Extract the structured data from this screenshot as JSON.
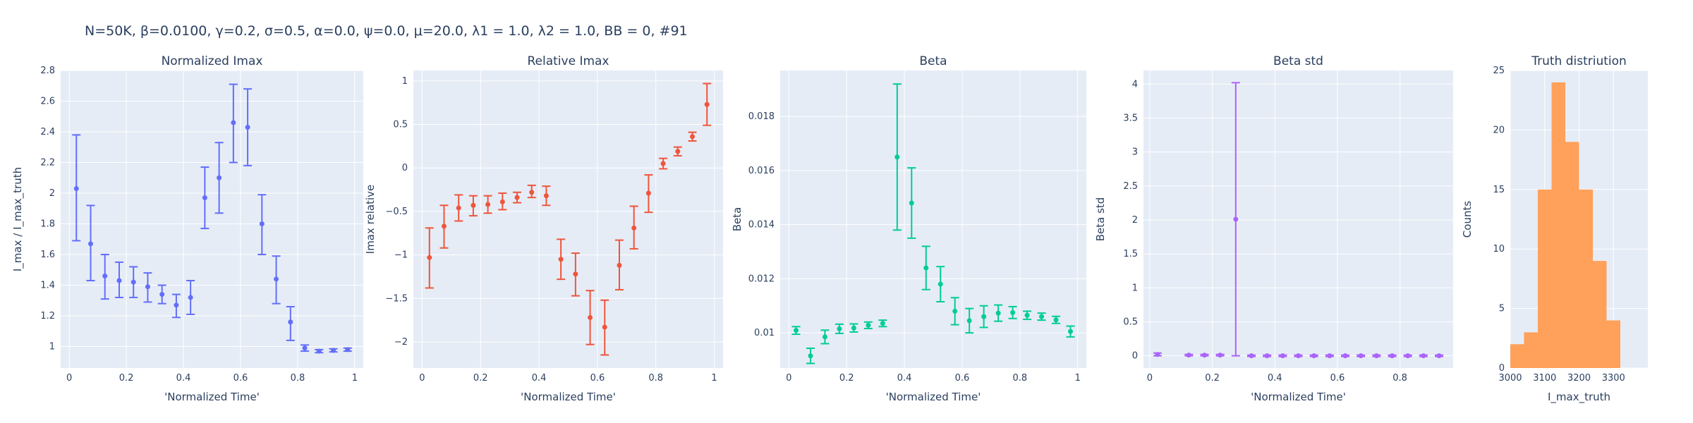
{
  "figure_title": "N=50K, β=0.0100, γ=0.2, σ=0.5,  α=0.0, ψ=0.0, μ=20.0, λ1 = 1.0, λ2 = 1.0, BB = 0, #91",
  "colors": {
    "panel_bg": "#e5ecf6",
    "grid": "#ffffff",
    "text": "#2a3f5f"
  },
  "chart_data": [
    {
      "type": "scatter",
      "title": "Normalized Imax",
      "xlabel": "'Normalized Time'",
      "ylabel": "I_max / I_max_truth",
      "color": "#636efa",
      "xlim": [
        -0.03,
        1.03
      ],
      "ylim": [
        0.86,
        2.8
      ],
      "xticks": [
        0,
        0.2,
        0.4,
        0.6,
        0.8,
        1
      ],
      "xticklabels": [
        "0",
        "0.2",
        "0.4",
        "0.6",
        "0.8",
        "1"
      ],
      "yticks": [
        1,
        1.2,
        1.4,
        1.6,
        1.8,
        2,
        2.2,
        2.4,
        2.6,
        2.8
      ],
      "yticklabels": [
        "1",
        "1.2",
        "1.4",
        "1.6",
        "1.8",
        "2",
        "2.2",
        "2.4",
        "2.6",
        "2.8"
      ],
      "points": [
        {
          "x": 0.025,
          "y": 2.03,
          "lo": 1.69,
          "hi": 2.38
        },
        {
          "x": 0.075,
          "y": 1.67,
          "lo": 1.43,
          "hi": 1.92
        },
        {
          "x": 0.125,
          "y": 1.46,
          "lo": 1.31,
          "hi": 1.6
        },
        {
          "x": 0.175,
          "y": 1.43,
          "lo": 1.32,
          "hi": 1.55
        },
        {
          "x": 0.225,
          "y": 1.42,
          "lo": 1.32,
          "hi": 1.52
        },
        {
          "x": 0.275,
          "y": 1.39,
          "lo": 1.29,
          "hi": 1.48
        },
        {
          "x": 0.325,
          "y": 1.34,
          "lo": 1.28,
          "hi": 1.4
        },
        {
          "x": 0.375,
          "y": 1.27,
          "lo": 1.19,
          "hi": 1.34
        },
        {
          "x": 0.425,
          "y": 1.32,
          "lo": 1.21,
          "hi": 1.43
        },
        {
          "x": 0.475,
          "y": 1.97,
          "lo": 1.77,
          "hi": 2.17
        },
        {
          "x": 0.525,
          "y": 2.1,
          "lo": 1.87,
          "hi": 2.33
        },
        {
          "x": 0.575,
          "y": 2.46,
          "lo": 2.2,
          "hi": 2.71
        },
        {
          "x": 0.625,
          "y": 2.43,
          "lo": 2.18,
          "hi": 2.68
        },
        {
          "x": 0.675,
          "y": 1.8,
          "lo": 1.6,
          "hi": 1.99
        },
        {
          "x": 0.725,
          "y": 1.44,
          "lo": 1.28,
          "hi": 1.59
        },
        {
          "x": 0.775,
          "y": 1.16,
          "lo": 1.04,
          "hi": 1.26
        },
        {
          "x": 0.825,
          "y": 0.99,
          "lo": 0.97,
          "hi": 1.01
        },
        {
          "x": 0.875,
          "y": 0.97,
          "lo": 0.96,
          "hi": 0.98
        },
        {
          "x": 0.925,
          "y": 0.975,
          "lo": 0.965,
          "hi": 0.985
        },
        {
          "x": 0.975,
          "y": 0.98,
          "lo": 0.97,
          "hi": 0.99
        }
      ]
    },
    {
      "type": "scatter",
      "title": "Relative Imax",
      "xlabel": "'Normalized Time'",
      "ylabel": "Imax relative",
      "color": "#ef553b",
      "xlim": [
        -0.03,
        1.03
      ],
      "ylim": [
        -2.3,
        1.12
      ],
      "xticks": [
        0,
        0.2,
        0.4,
        0.6,
        0.8,
        1
      ],
      "xticklabels": [
        "0",
        "0.2",
        "0.4",
        "0.6",
        "0.8",
        "1"
      ],
      "yticks": [
        -2,
        -1.5,
        -1,
        -0.5,
        0,
        0.5,
        1
      ],
      "yticklabels": [
        "−2",
        "−1.5",
        "−1",
        "−0.5",
        "0",
        "0.5",
        "1"
      ],
      "points": [
        {
          "x": 0.025,
          "y": -1.03,
          "lo": -1.38,
          "hi": -0.69
        },
        {
          "x": 0.075,
          "y": -0.67,
          "lo": -0.92,
          "hi": -0.43
        },
        {
          "x": 0.125,
          "y": -0.46,
          "lo": -0.61,
          "hi": -0.31
        },
        {
          "x": 0.175,
          "y": -0.43,
          "lo": -0.55,
          "hi": -0.32
        },
        {
          "x": 0.225,
          "y": -0.42,
          "lo": -0.52,
          "hi": -0.32
        },
        {
          "x": 0.275,
          "y": -0.39,
          "lo": -0.48,
          "hi": -0.29
        },
        {
          "x": 0.325,
          "y": -0.34,
          "lo": -0.4,
          "hi": -0.28
        },
        {
          "x": 0.375,
          "y": -0.28,
          "lo": -0.34,
          "hi": -0.2
        },
        {
          "x": 0.425,
          "y": -0.32,
          "lo": -0.43,
          "hi": -0.21
        },
        {
          "x": 0.475,
          "y": -1.05,
          "lo": -1.28,
          "hi": -0.82
        },
        {
          "x": 0.525,
          "y": -1.22,
          "lo": -1.47,
          "hi": -0.98
        },
        {
          "x": 0.575,
          "y": -1.72,
          "lo": -2.03,
          "hi": -1.41
        },
        {
          "x": 0.625,
          "y": -1.83,
          "lo": -2.15,
          "hi": -1.52
        },
        {
          "x": 0.675,
          "y": -1.12,
          "lo": -1.4,
          "hi": -0.83
        },
        {
          "x": 0.725,
          "y": -0.69,
          "lo": -0.93,
          "hi": -0.44
        },
        {
          "x": 0.775,
          "y": -0.29,
          "lo": -0.51,
          "hi": -0.08
        },
        {
          "x": 0.825,
          "y": 0.05,
          "lo": -0.01,
          "hi": 0.11
        },
        {
          "x": 0.875,
          "y": 0.19,
          "lo": 0.14,
          "hi": 0.24
        },
        {
          "x": 0.925,
          "y": 0.36,
          "lo": 0.31,
          "hi": 0.41
        },
        {
          "x": 0.975,
          "y": 0.73,
          "lo": 0.49,
          "hi": 0.97
        }
      ]
    },
    {
      "type": "scatter",
      "title": "Beta",
      "xlabel": "'Normalized Time'",
      "ylabel": "Beta",
      "color": "#00cc96",
      "xlim": [
        -0.03,
        1.03
      ],
      "ylim": [
        0.0087,
        0.0197
      ],
      "xticks": [
        0,
        0.2,
        0.4,
        0.6,
        0.8,
        1
      ],
      "xticklabels": [
        "0",
        "0.2",
        "0.4",
        "0.6",
        "0.8",
        "1"
      ],
      "yticks": [
        0.01,
        0.012,
        0.014,
        0.016,
        0.018
      ],
      "yticklabels": [
        "0.01",
        "0.012",
        "0.014",
        "0.016",
        "0.018"
      ],
      "points": [
        {
          "x": 0.025,
          "y": 0.01009,
          "lo": 0.00995,
          "hi": 0.01023
        },
        {
          "x": 0.075,
          "y": 0.00915,
          "lo": 0.00887,
          "hi": 0.00943
        },
        {
          "x": 0.125,
          "y": 0.00985,
          "lo": 0.0096,
          "hi": 0.0101
        },
        {
          "x": 0.175,
          "y": 0.01015,
          "lo": 0.00998,
          "hi": 0.01032
        },
        {
          "x": 0.225,
          "y": 0.01018,
          "lo": 0.01003,
          "hi": 0.01033
        },
        {
          "x": 0.275,
          "y": 0.01028,
          "lo": 0.01016,
          "hi": 0.0104
        },
        {
          "x": 0.325,
          "y": 0.01035,
          "lo": 0.01023,
          "hi": 0.01047
        },
        {
          "x": 0.375,
          "y": 0.0165,
          "lo": 0.0138,
          "hi": 0.0192
        },
        {
          "x": 0.425,
          "y": 0.0148,
          "lo": 0.0135,
          "hi": 0.0161
        },
        {
          "x": 0.475,
          "y": 0.0124,
          "lo": 0.0116,
          "hi": 0.0132
        },
        {
          "x": 0.525,
          "y": 0.0118,
          "lo": 0.01115,
          "hi": 0.01245
        },
        {
          "x": 0.575,
          "y": 0.0108,
          "lo": 0.0103,
          "hi": 0.0113
        },
        {
          "x": 0.625,
          "y": 0.01045,
          "lo": 0.01,
          "hi": 0.0109
        },
        {
          "x": 0.675,
          "y": 0.0106,
          "lo": 0.0102,
          "hi": 0.011
        },
        {
          "x": 0.725,
          "y": 0.01073,
          "lo": 0.01043,
          "hi": 0.01103
        },
        {
          "x": 0.775,
          "y": 0.01075,
          "lo": 0.01053,
          "hi": 0.01097
        },
        {
          "x": 0.825,
          "y": 0.01065,
          "lo": 0.0105,
          "hi": 0.0108
        },
        {
          "x": 0.875,
          "y": 0.0106,
          "lo": 0.01047,
          "hi": 0.01073
        },
        {
          "x": 0.925,
          "y": 0.01048,
          "lo": 0.01035,
          "hi": 0.01061
        },
        {
          "x": 0.975,
          "y": 0.01005,
          "lo": 0.00985,
          "hi": 0.01025
        }
      ]
    },
    {
      "type": "scatter",
      "title": "Beta std",
      "xlabel": "'Normalized Time'",
      "ylabel": "Beta std",
      "color": "#ab63fa",
      "xlim": [
        -0.02,
        0.97
      ],
      "ylim": [
        -0.18,
        4.2
      ],
      "xticks": [
        0,
        0.2,
        0.4,
        0.6,
        0.8
      ],
      "xticklabels": [
        "0",
        "0.2",
        "0.4",
        "0.6",
        "0.8"
      ],
      "yticks": [
        0,
        0.5,
        1,
        1.5,
        2,
        2.5,
        3,
        3.5,
        4
      ],
      "yticklabels": [
        "0",
        "0.5",
        "1",
        "1.5",
        "2",
        "2.5",
        "3",
        "3.5",
        "4"
      ],
      "points": [
        {
          "x": 0.025,
          "y": 0.02,
          "lo": 0.0,
          "hi": 0.04
        },
        {
          "x": 0.125,
          "y": 0.01,
          "lo": 0.0,
          "hi": 0.02
        },
        {
          "x": 0.175,
          "y": 0.01,
          "lo": 0.0,
          "hi": 0.02
        },
        {
          "x": 0.225,
          "y": 0.01,
          "lo": 0.0,
          "hi": 0.02
        },
        {
          "x": 0.275,
          "y": 2.01,
          "lo": 0.0,
          "hi": 4.02
        },
        {
          "x": 0.325,
          "y": 0.0,
          "lo": -0.01,
          "hi": 0.01
        },
        {
          "x": 0.375,
          "y": 0.0,
          "lo": -0.01,
          "hi": 0.01
        },
        {
          "x": 0.425,
          "y": 0.0,
          "lo": -0.01,
          "hi": 0.01
        },
        {
          "x": 0.475,
          "y": 0.0,
          "lo": -0.01,
          "hi": 0.01
        },
        {
          "x": 0.525,
          "y": 0.0,
          "lo": -0.01,
          "hi": 0.01
        },
        {
          "x": 0.575,
          "y": 0.0,
          "lo": -0.01,
          "hi": 0.01
        },
        {
          "x": 0.625,
          "y": 0.0,
          "lo": -0.01,
          "hi": 0.01
        },
        {
          "x": 0.675,
          "y": 0.0,
          "lo": -0.01,
          "hi": 0.01
        },
        {
          "x": 0.725,
          "y": 0.0,
          "lo": -0.01,
          "hi": 0.01
        },
        {
          "x": 0.775,
          "y": 0.0,
          "lo": -0.01,
          "hi": 0.01
        },
        {
          "x": 0.825,
          "y": 0.0,
          "lo": -0.01,
          "hi": 0.01
        },
        {
          "x": 0.875,
          "y": 0.0,
          "lo": -0.01,
          "hi": 0.01
        },
        {
          "x": 0.925,
          "y": 0.0,
          "lo": -0.01,
          "hi": 0.01
        }
      ]
    },
    {
      "type": "bar",
      "title": "Truth distriution",
      "xlabel": "I_max_truth",
      "ylabel": "Counts",
      "color": "#ffa15a",
      "xlim": [
        3000,
        3400
      ],
      "ylim": [
        0,
        25
      ],
      "xticks": [
        3000,
        3100,
        3200,
        3300
      ],
      "xticklabels": [
        "3000",
        "3100",
        "3200",
        "3300"
      ],
      "yticks": [
        0,
        5,
        10,
        15,
        20,
        25
      ],
      "yticklabels": [
        "0",
        "5",
        "10",
        "15",
        "20",
        "25"
      ],
      "bins": [
        {
          "x0": 3000,
          "x1": 3040,
          "count": 2
        },
        {
          "x0": 3040,
          "x1": 3080,
          "count": 3
        },
        {
          "x0": 3080,
          "x1": 3120,
          "count": 15
        },
        {
          "x0": 3120,
          "x1": 3160,
          "count": 24
        },
        {
          "x0": 3160,
          "x1": 3200,
          "count": 19
        },
        {
          "x0": 3200,
          "x1": 3240,
          "count": 15
        },
        {
          "x0": 3240,
          "x1": 3280,
          "count": 9
        },
        {
          "x0": 3280,
          "x1": 3320,
          "count": 4
        }
      ]
    }
  ]
}
